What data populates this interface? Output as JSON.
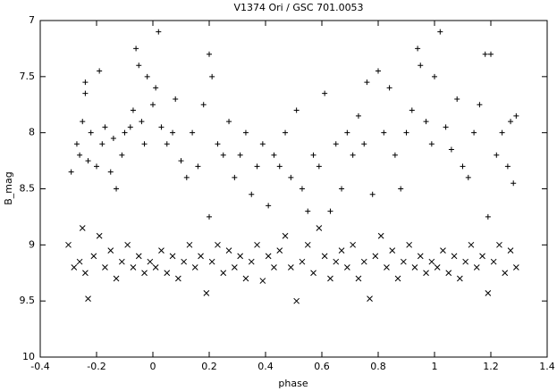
{
  "chart_data": {
    "type": "scatter",
    "title": "V1374 Ori / GSC 701.0053",
    "xlabel": "phase",
    "ylabel": "B_mag",
    "xlim": [
      -0.4,
      1.4
    ],
    "xticks": [
      -0.4,
      -0.2,
      0,
      0.2,
      0.4,
      0.6,
      0.8,
      1,
      1.2,
      1.4
    ],
    "ylim": [
      10,
      7
    ],
    "yticks": [
      7,
      7.5,
      8,
      8.5,
      9,
      9.5,
      10
    ],
    "series": [
      {
        "marker": "+",
        "color": "#000000",
        "x": [
          -0.29,
          -0.27,
          -0.26,
          -0.25,
          -0.24,
          -0.24,
          -0.23,
          -0.22,
          -0.2,
          -0.19,
          -0.18,
          -0.17,
          -0.15,
          -0.14,
          -0.13,
          -0.11,
          -0.1,
          -0.08,
          -0.07,
          -0.06,
          -0.05,
          -0.04,
          -0.03,
          -0.02,
          0.0,
          0.01,
          0.02,
          0.03,
          0.05,
          0.07,
          0.08,
          0.1,
          0.12,
          0.14,
          0.16,
          0.18,
          0.2,
          0.2,
          0.21,
          0.23,
          0.25,
          0.27,
          0.29,
          0.31,
          0.33,
          0.35,
          0.37,
          0.39,
          0.41,
          0.43,
          0.45,
          0.47,
          0.49,
          0.51,
          0.53,
          0.55,
          0.57,
          0.59,
          0.61,
          0.63,
          0.65,
          0.67,
          0.69,
          0.71,
          0.73,
          0.75,
          0.76,
          0.78,
          0.8,
          0.82,
          0.84,
          0.86,
          0.88,
          0.9,
          0.92,
          0.94,
          0.95,
          0.97,
          0.99,
          1.0,
          1.02,
          1.04,
          1.06,
          1.08,
          1.1,
          1.12,
          1.14,
          1.16,
          1.18,
          1.19,
          1.2,
          1.22,
          1.24,
          1.26,
          1.27,
          1.28,
          1.29
        ],
        "values": [
          8.35,
          8.1,
          8.2,
          7.9,
          7.55,
          7.65,
          8.25,
          8.0,
          8.3,
          7.45,
          8.1,
          7.95,
          8.35,
          8.05,
          8.5,
          8.2,
          8.0,
          7.95,
          7.8,
          7.25,
          7.4,
          7.9,
          8.1,
          7.5,
          7.75,
          7.6,
          7.1,
          7.95,
          8.1,
          8.0,
          7.7,
          8.25,
          8.4,
          8.0,
          8.3,
          7.75,
          7.3,
          8.75,
          7.5,
          8.1,
          8.2,
          7.9,
          8.4,
          8.2,
          8.0,
          8.55,
          8.3,
          8.1,
          8.65,
          8.2,
          8.3,
          8.0,
          8.4,
          7.8,
          8.5,
          8.7,
          8.2,
          8.3,
          7.65,
          8.7,
          8.1,
          8.5,
          8.0,
          8.2,
          7.85,
          8.1,
          7.55,
          8.55,
          7.45,
          8.0,
          7.6,
          8.2,
          8.5,
          8.0,
          7.8,
          7.25,
          7.4,
          7.9,
          8.1,
          7.5,
          7.1,
          7.95,
          8.15,
          7.7,
          8.3,
          8.4,
          8.0,
          7.75,
          7.3,
          8.75,
          7.3,
          8.2,
          8.0,
          8.3,
          7.9,
          8.45,
          7.85
        ]
      },
      {
        "marker": "x",
        "color": "#000000",
        "x": [
          -0.3,
          -0.28,
          -0.26,
          -0.25,
          -0.24,
          -0.23,
          -0.21,
          -0.19,
          -0.17,
          -0.15,
          -0.13,
          -0.11,
          -0.09,
          -0.07,
          -0.05,
          -0.03,
          -0.01,
          0.01,
          0.03,
          0.05,
          0.07,
          0.09,
          0.11,
          0.13,
          0.15,
          0.17,
          0.19,
          0.21,
          0.23,
          0.25,
          0.27,
          0.29,
          0.31,
          0.33,
          0.35,
          0.37,
          0.39,
          0.41,
          0.43,
          0.45,
          0.47,
          0.49,
          0.51,
          0.53,
          0.55,
          0.57,
          0.59,
          0.61,
          0.63,
          0.65,
          0.67,
          0.69,
          0.71,
          0.73,
          0.75,
          0.77,
          0.79,
          0.81,
          0.83,
          0.85,
          0.87,
          0.89,
          0.91,
          0.93,
          0.95,
          0.97,
          0.99,
          1.01,
          1.03,
          1.05,
          1.07,
          1.09,
          1.11,
          1.13,
          1.15,
          1.17,
          1.19,
          1.21,
          1.23,
          1.25,
          1.27,
          1.29
        ],
        "values": [
          9.0,
          9.2,
          9.15,
          8.85,
          9.25,
          9.48,
          9.1,
          8.92,
          9.2,
          9.05,
          9.3,
          9.15,
          9.0,
          9.2,
          9.1,
          9.25,
          9.15,
          9.2,
          9.05,
          9.25,
          9.1,
          9.3,
          9.15,
          9.0,
          9.2,
          9.1,
          9.43,
          9.15,
          9.0,
          9.25,
          9.05,
          9.2,
          9.1,
          9.3,
          9.15,
          9.0,
          9.32,
          9.1,
          9.2,
          9.05,
          8.92,
          9.2,
          9.5,
          9.15,
          9.0,
          9.25,
          8.85,
          9.1,
          9.3,
          9.15,
          9.05,
          9.2,
          9.0,
          9.3,
          9.15,
          9.48,
          9.1,
          8.92,
          9.2,
          9.05,
          9.3,
          9.15,
          9.0,
          9.2,
          9.1,
          9.25,
          9.15,
          9.2,
          9.05,
          9.25,
          9.1,
          9.3,
          9.15,
          9.0,
          9.2,
          9.1,
          9.43,
          9.15,
          9.0,
          9.25,
          9.05,
          9.2
        ]
      }
    ]
  }
}
